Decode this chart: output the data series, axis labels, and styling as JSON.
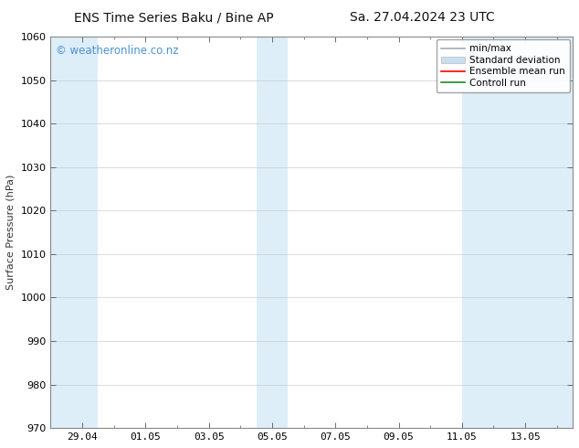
{
  "title_left": "ENS Time Series Baku / Bine AP",
  "title_right": "Sa. 27.04.2024 23 UTC",
  "ylabel": "Surface Pressure (hPa)",
  "ylim": [
    970,
    1060
  ],
  "yticks": [
    970,
    980,
    990,
    1000,
    1010,
    1020,
    1030,
    1040,
    1050,
    1060
  ],
  "xlim": [
    0.0,
    16.5
  ],
  "xtick_labels": [
    "29.04",
    "01.05",
    "03.05",
    "05.05",
    "07.05",
    "09.05",
    "11.05",
    "13.05"
  ],
  "xtick_positions": [
    1.0,
    3.0,
    5.0,
    7.0,
    9.0,
    11.0,
    13.0,
    15.0
  ],
  "background_color": "#ffffff",
  "plot_bg_color": "#ffffff",
  "shaded_bands": [
    {
      "x_start": 0.0,
      "x_end": 1.5,
      "color": "#ddeef8"
    },
    {
      "x_start": 6.5,
      "x_end": 7.5,
      "color": "#ddeef8"
    },
    {
      "x_start": 13.0,
      "x_end": 16.5,
      "color": "#ddeef8"
    }
  ],
  "watermark_text": "© weatheronline.co.nz",
  "watermark_color": "#4a90d9",
  "legend_items": [
    {
      "label": "min/max",
      "color": "#aaaaaa",
      "lw": 1.2,
      "style": "minmax"
    },
    {
      "label": "Standard deviation",
      "color": "#c8dff0",
      "lw": 8,
      "style": "bar"
    },
    {
      "label": "Ensemble mean run",
      "color": "#ff0000",
      "lw": 1.2,
      "style": "line"
    },
    {
      "label": "Controll run",
      "color": "#228B22",
      "lw": 1.2,
      "style": "line"
    }
  ],
  "grid_color": "#cccccc",
  "spine_color": "#888888",
  "title_fontsize": 10,
  "axis_label_fontsize": 8,
  "tick_fontsize": 8,
  "watermark_fontsize": 8.5,
  "legend_fontsize": 7.5
}
